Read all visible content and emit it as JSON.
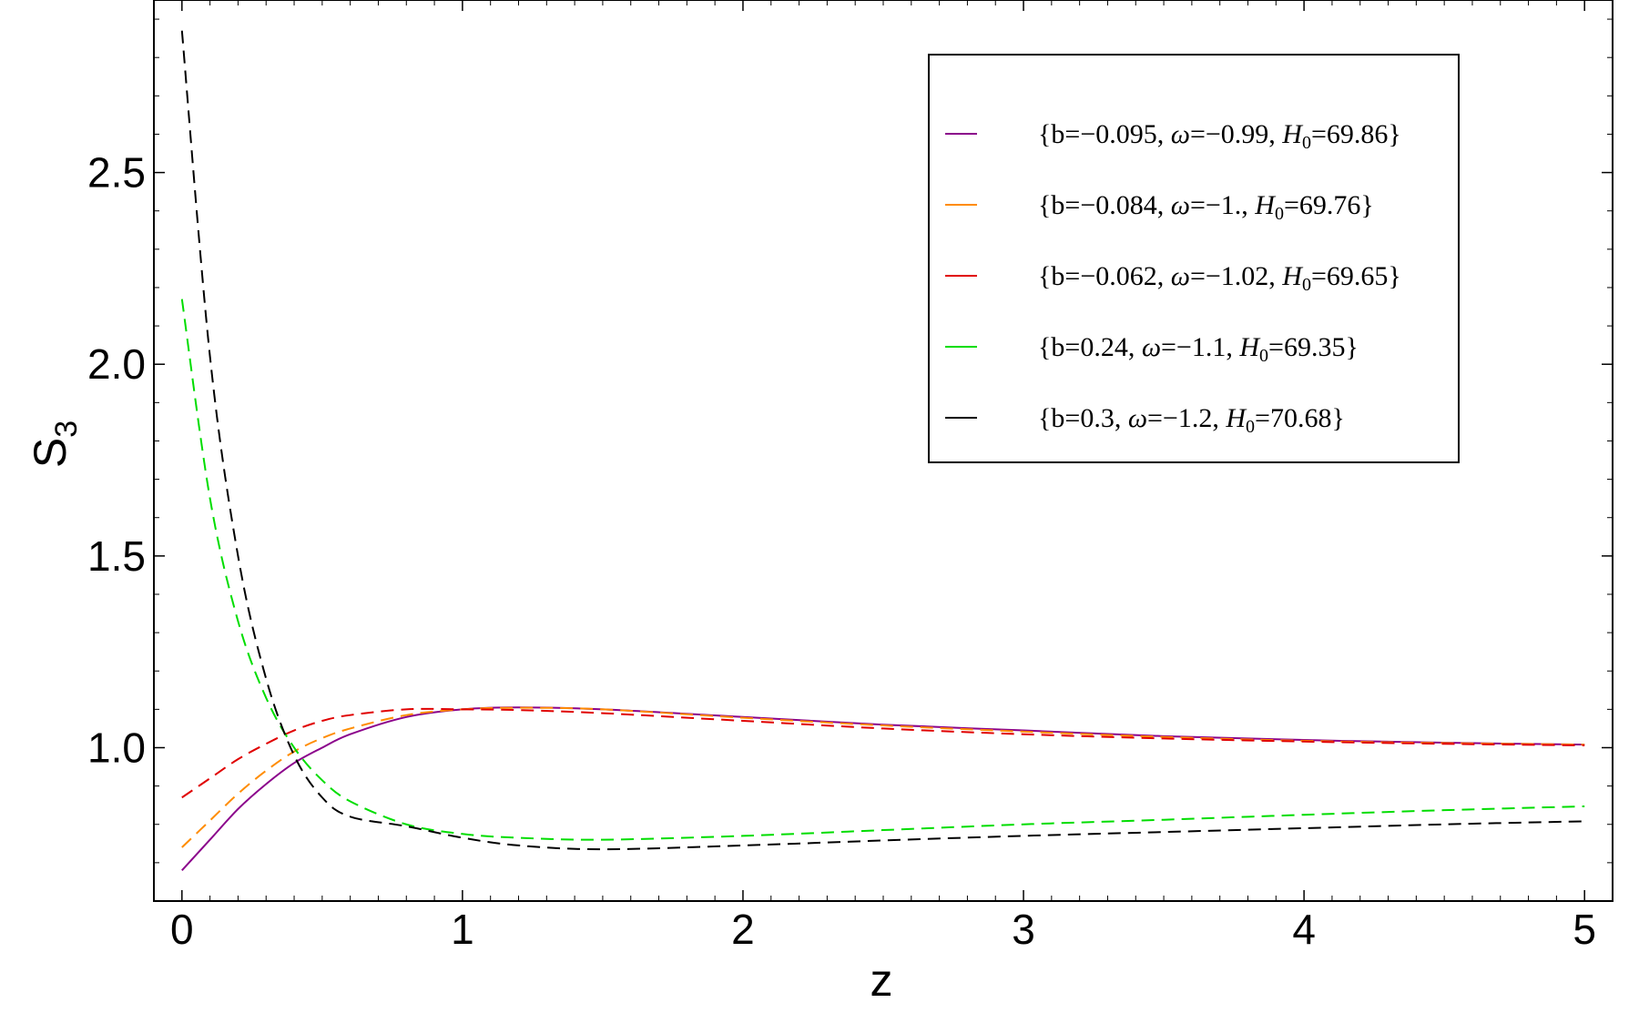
{
  "chart_data": {
    "type": "line",
    "xlabel": "z",
    "ylabel": "S",
    "ylabel_subscript": "3",
    "xlim": [
      -0.1,
      5.1
    ],
    "ylim": [
      0.6,
      2.95
    ],
    "x_ticks": [
      "0",
      "1",
      "2",
      "3",
      "4",
      "5"
    ],
    "y_ticks": [
      "1.0",
      "1.5",
      "2.0",
      "2.5"
    ],
    "x_tick_values": [
      0,
      1,
      2,
      3,
      4,
      5
    ],
    "y_tick_values": [
      1.0,
      1.5,
      2.0,
      2.5
    ],
    "grid": false,
    "legend_position": "top-right",
    "x": [
      0,
      0.1,
      0.2,
      0.3,
      0.4,
      0.5,
      0.6,
      0.8,
      1.0,
      1.2,
      1.5,
      2.0,
      2.5,
      3.0,
      3.5,
      4.0,
      4.5,
      5.0
    ],
    "series": [
      {
        "legend": {
          "b": "b=−0.095",
          "w": "−0.99",
          "h": "=69.86"
        },
        "color": "#8B008B",
        "dashed": false,
        "values": [
          0.68,
          0.76,
          0.84,
          0.905,
          0.96,
          1.0,
          1.035,
          1.08,
          1.1,
          1.105,
          1.1,
          1.08,
          1.06,
          1.045,
          1.03,
          1.02,
          1.013,
          1.008
        ]
      },
      {
        "legend": {
          "b": "b=−0.084",
          "w": "−1.",
          "h": "=69.76"
        },
        "color": "#FF8C00",
        "dashed": true,
        "values": [
          0.74,
          0.81,
          0.88,
          0.94,
          0.99,
          1.025,
          1.05,
          1.085,
          1.1,
          1.104,
          1.1,
          1.078,
          1.058,
          1.042,
          1.028,
          1.018,
          1.012,
          1.008
        ]
      },
      {
        "legend": {
          "b": "b=−0.062",
          "w": "−1.02",
          "h": "=69.65"
        },
        "color": "#E00000",
        "dashed": true,
        "values": [
          0.87,
          0.92,
          0.97,
          1.01,
          1.045,
          1.07,
          1.085,
          1.1,
          1.1,
          1.098,
          1.09,
          1.07,
          1.05,
          1.035,
          1.024,
          1.016,
          1.01,
          1.006
        ]
      },
      {
        "legend": {
          "b": "b=0.24",
          "w": "−1.1",
          "h": "=69.35"
        },
        "color": "#00DD00",
        "dashed": true,
        "values": [
          2.17,
          1.65,
          1.33,
          1.13,
          1.0,
          0.915,
          0.86,
          0.8,
          0.775,
          0.765,
          0.76,
          0.77,
          0.785,
          0.8,
          0.812,
          0.825,
          0.837,
          0.847
        ]
      },
      {
        "legend": {
          "b": "b=0.3",
          "w": "−1.2",
          "h": "=70.68"
        },
        "color": "#000000",
        "dashed": true,
        "values": [
          2.87,
          2.02,
          1.5,
          1.18,
          0.98,
          0.87,
          0.82,
          0.795,
          0.765,
          0.745,
          0.735,
          0.745,
          0.758,
          0.77,
          0.78,
          0.79,
          0.8,
          0.808
        ]
      }
    ]
  }
}
